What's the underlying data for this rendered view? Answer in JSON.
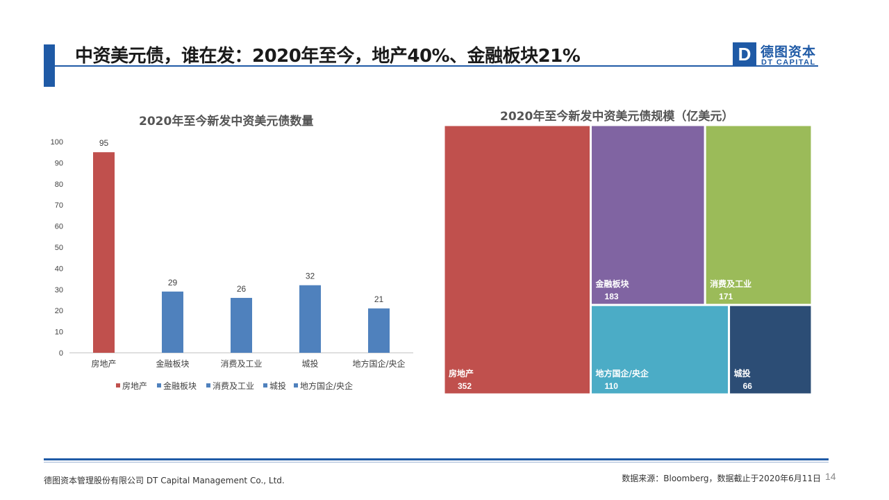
{
  "slide": {
    "title": "中资美元债，谁在发：2020年至今，地产40%、金融板块21%",
    "page_number": "14"
  },
  "logo": {
    "cn": "德图资本",
    "en": "DT CAPITAL",
    "mark": "D"
  },
  "footer": {
    "company": "德图资本管理股份有限公司  DT Capital Management  Co., Ltd.",
    "source": "数据来源：Bloomberg，数据截止于2020年6月11日"
  },
  "colors": {
    "accent": "#1F5AA6",
    "real_estate": "#C0504D",
    "blue_series": "#4F81BD",
    "finance": "#8064A2",
    "consumer_industry": "#9BBB59",
    "local_soe": "#4BACC6",
    "lgfv": "#2C4D75"
  },
  "chart_data": [
    {
      "type": "bar",
      "title": "2020年至今新发中资美元债数量",
      "categories": [
        "房地产",
        "金融板块",
        "消费及工业",
        "城投",
        "地方国企/央企"
      ],
      "values": [
        95,
        29,
        26,
        32,
        21
      ],
      "colors": [
        "#C0504D",
        "#4F81BD",
        "#4F81BD",
        "#4F81BD",
        "#4F81BD"
      ],
      "ylim": [
        0,
        100
      ],
      "yticks": [
        0,
        10,
        20,
        30,
        40,
        50,
        60,
        70,
        80,
        90,
        100
      ],
      "legend": [
        "房地产",
        "金融板块",
        "消费及工业",
        "城投",
        "地方国企/央企"
      ],
      "legend_position": "bottom",
      "grid": false,
      "data_labels": true
    },
    {
      "type": "treemap",
      "title": "2020年至今新发中资美元债规模（亿美元）",
      "items": [
        {
          "name": "房地产",
          "value": 352,
          "color": "#C0504D"
        },
        {
          "name": "金融板块",
          "value": 183,
          "color": "#8064A2"
        },
        {
          "name": "消费及工业",
          "value": 171,
          "color": "#9BBB59"
        },
        {
          "name": "地方国企/央企",
          "value": 110,
          "color": "#4BACC6"
        },
        {
          "name": "城投",
          "value": 66,
          "color": "#2C4D75"
        }
      ]
    }
  ]
}
